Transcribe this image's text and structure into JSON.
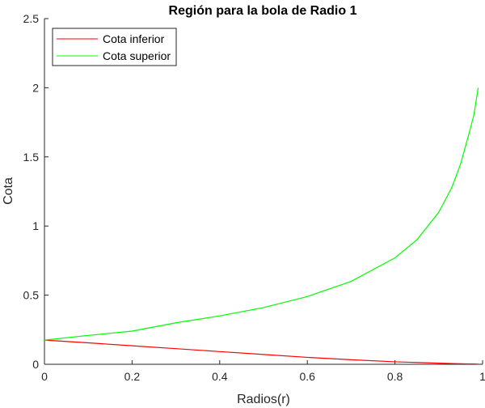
{
  "chart_data": {
    "type": "line",
    "title": "Región para la bola de Radio 1",
    "xlabel": "Radios(r)",
    "ylabel": "Cota",
    "xlim": [
      0,
      1
    ],
    "ylim": [
      0,
      2.5
    ],
    "xticks": [
      0,
      0.2,
      0.4,
      0.6,
      0.8,
      1
    ],
    "xtick_labels": [
      "0",
      "0.2",
      "0.4",
      "0.6",
      "0.8",
      "1"
    ],
    "yticks": [
      0,
      0.5,
      1,
      1.5,
      2,
      2.5
    ],
    "ytick_labels": [
      "0",
      "0.5",
      "1",
      "1.5",
      "2",
      "2.5"
    ],
    "grid": false,
    "legend_position": "top-left",
    "x": [
      0,
      0.1,
      0.2,
      0.3,
      0.4,
      0.5,
      0.6,
      0.7,
      0.8,
      0.85,
      0.9,
      0.93,
      0.95,
      0.97,
      0.98,
      0.99
    ],
    "series": [
      {
        "name": "Cota inferior",
        "color": "#ff0000",
        "values": [
          0.175,
          0.155,
          0.134,
          0.113,
          0.092,
          0.071,
          0.05,
          0.033,
          0.018,
          0.013,
          0.008,
          0.005,
          0.004,
          0.002,
          0.002,
          0.001
        ]
      },
      {
        "name": "Cota superior",
        "color": "#00ff00",
        "values": [
          0.175,
          0.209,
          0.24,
          0.3,
          0.35,
          0.41,
          0.49,
          0.6,
          0.77,
          0.9,
          1.1,
          1.28,
          1.45,
          1.68,
          1.8,
          2.0
        ]
      }
    ]
  }
}
